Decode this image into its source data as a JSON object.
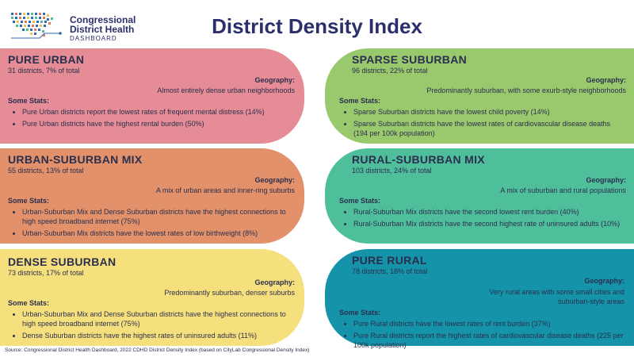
{
  "logo": {
    "line1": "Congressional",
    "line2": "District Health",
    "line3": "DASHBOARD"
  },
  "title": "District Density Index",
  "colors": {
    "pure_urban": "#e58c96",
    "urban_suburban_mix": "#e2916a",
    "dense_suburban": "#f6e07d",
    "sparse_suburban": "#99c86d",
    "rural_suburban_mix": "#4fbe9b",
    "pure_rural": "#1493a9",
    "title": "#2b2f6b"
  },
  "cards": {
    "pure_urban": {
      "title": "PURE URBAN",
      "count": "31 districts, 7% of total",
      "geo_label": "Geography:",
      "geo": "Almost entirely dense urban neighborhoods",
      "stats_label": "Some Stats:",
      "stats": [
        "Pure Urban districts report the lowest rates of frequent mental distress (14%)",
        "Pure Urban districts have the highest rental burden (50%)"
      ]
    },
    "urban_suburban_mix": {
      "title": "URBAN-SUBURBAN MIX",
      "count": "55 districts, 13% of total",
      "geo_label": "Geography:",
      "geo": "A mix of urban areas and inner-ring suburbs",
      "stats_label": "Some Stats:",
      "stats": [
        "Urban-Suburban Mix and Dense Suburban districts have the highest connections to high speed broadband internet (75%)",
        "Urban-Suburban Mix districts have the lowest rates of low birthweight (8%)"
      ]
    },
    "dense_suburban": {
      "title": "DENSE SUBURBAN",
      "count": "73 districts, 17% of total",
      "geo_label": "Geography:",
      "geo": "Predominantly suburban, denser suburbs",
      "stats_label": "Some Stats:",
      "stats": [
        "Urban-Suburban Mix and Dense Suburban districts have the highest connections to high speed broadband internet (75%)",
        "Dense Suburban districts have the highest rates of uninsured adults (11%)"
      ]
    },
    "sparse_suburban": {
      "title": "SPARSE SUBURBAN",
      "count": "96 districts, 22% of total",
      "geo_label": "Geography:",
      "geo": "Predominantly suburban, with some exurb-style neighborhoods",
      "stats_label": "Some Stats:",
      "stats": [
        "Sparse Suburban districts have the lowest child poverty (14%)",
        "Sparse Suburban districts have the lowest rates of cardiovascular disease deaths (194 per 100k population)"
      ]
    },
    "rural_suburban_mix": {
      "title": "RURAL-SUBURBAN MIX",
      "count": "103 districts, 24% of total",
      "geo_label": "Geography:",
      "geo": "A mix of suburban and rural populations",
      "stats_label": "Some Stats:",
      "stats": [
        "Rural-Suburban Mix districts have the second lowest rent burden (40%)",
        "Rural-Suburban Mix districts have the second highest rate of uninsured adults (10%)"
      ]
    },
    "pure_rural": {
      "title": "PURE RURAL",
      "count": "78 districts, 18% of total",
      "geo_label": "Geography:",
      "geo": "Very rural areas with some small cities and suburban-style areas",
      "stats_label": "Some Stats:",
      "stats": [
        "Pure Rural districts have the lowest rates of rent burden (37%)",
        "Pure Rural districts report the highest rates of cardiovascular disease deaths (225 per 100k population)"
      ]
    }
  },
  "source": "Source: Congressional District Health Dashboard, 2022 CDHD District Density Index (based on CityLab Congressional Density Index)"
}
